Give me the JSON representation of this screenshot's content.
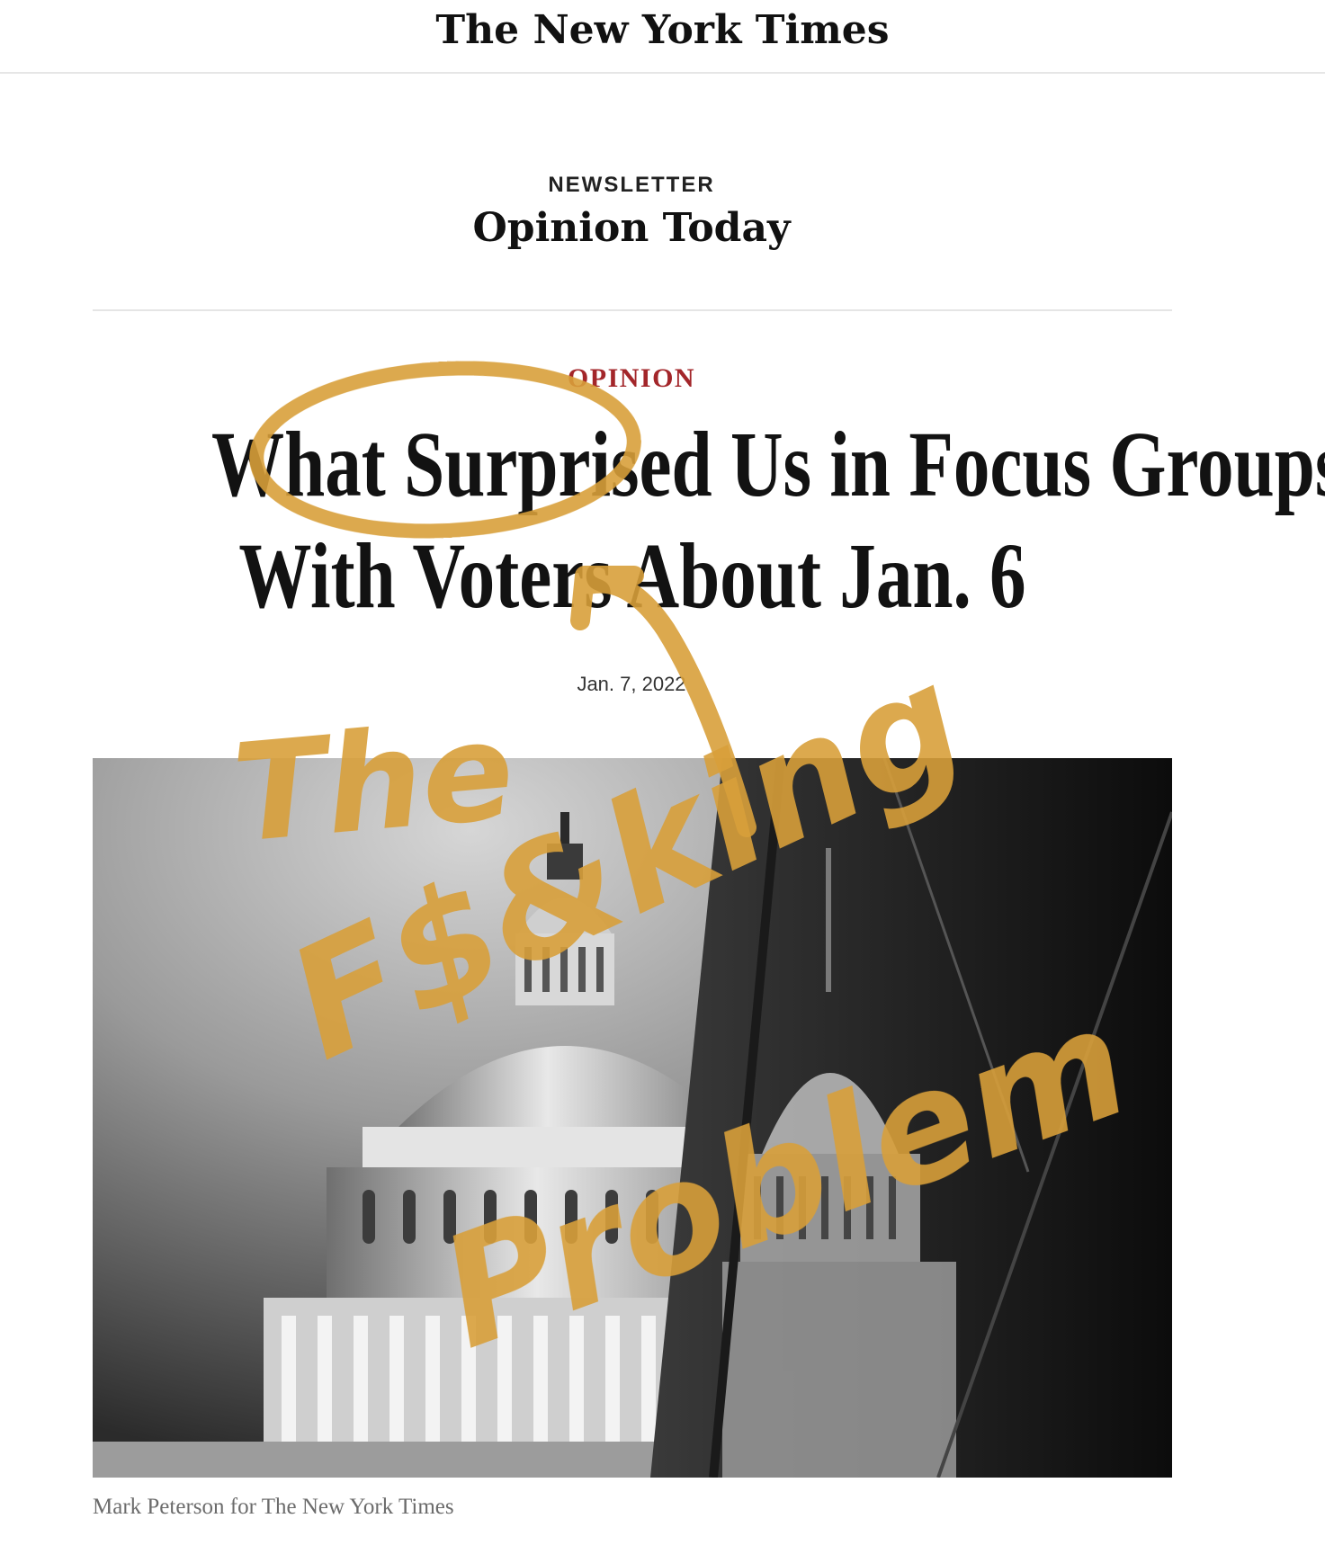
{
  "masthead": {
    "logo_text": "The New York Times"
  },
  "newsletter": {
    "kicker": "NEWSLETTER",
    "title": "Opinion Today"
  },
  "article": {
    "section": "OPINION",
    "headline_line1": "What Surprised Us in Focus Groups",
    "headline_line2": "With Voters About Jan. 6",
    "date": "Jan. 7, 2022",
    "photo_credit": "Mark Peterson for The New York Times"
  },
  "annotation": {
    "color": "#D9A03A",
    "word1": "The",
    "word2": "F$&king",
    "word3": "Problem"
  },
  "colors": {
    "section_red": "#A3262A",
    "text": "#121212",
    "caption_gray": "#6B6B6B"
  }
}
